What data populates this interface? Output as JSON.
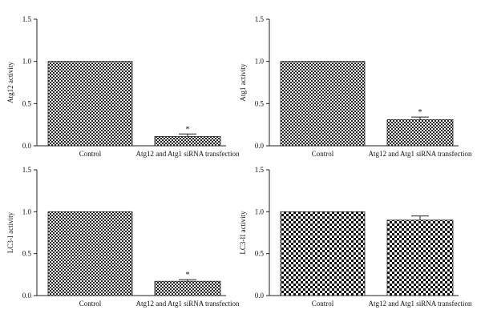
{
  "chart_data": [
    {
      "type": "bar",
      "categories": [
        "Control",
        "Atg12 and Atg1 siRNA transfection"
      ],
      "values": [
        1.0,
        0.11
      ],
      "errors": [
        0,
        0.03
      ],
      "significance": [
        "",
        "*"
      ],
      "title": "",
      "xlabel": "",
      "ylabel": "Atg12 activity",
      "ylim": [
        0,
        1.5
      ],
      "yticks": [
        "0.0",
        "0.5",
        "1.0",
        "1.5"
      ],
      "grid": false,
      "bar_pattern": "checkerboard"
    },
    {
      "type": "bar",
      "categories": [
        "Control",
        "Atg12 and Atg1 siRNA transfection"
      ],
      "values": [
        1.0,
        0.31
      ],
      "errors": [
        0,
        0.03
      ],
      "significance": [
        "",
        "*"
      ],
      "title": "",
      "xlabel": "",
      "ylabel": "Atg1 activity",
      "ylim": [
        0,
        1.5
      ],
      "yticks": [
        "0.0",
        "0.5",
        "1.0",
        "1.5"
      ],
      "grid": false,
      "bar_pattern": "checkerboard"
    },
    {
      "type": "bar",
      "categories": [
        "Control",
        "Atg12 and Atg1 siRNA transfection"
      ],
      "values": [
        1.0,
        0.17
      ],
      "errors": [
        0,
        0.02
      ],
      "significance": [
        "",
        "*"
      ],
      "title": "",
      "xlabel": "",
      "ylabel": "LC3-I activity",
      "ylim": [
        0,
        1.5
      ],
      "yticks": [
        "0.0",
        "0.5",
        "1.0",
        "1.5"
      ],
      "grid": false,
      "bar_pattern": "checkerboard"
    },
    {
      "type": "bar",
      "categories": [
        "Control",
        "Atg12 and Atg1 siRNA transfection"
      ],
      "values": [
        1.0,
        0.9
      ],
      "errors": [
        0,
        0.05
      ],
      "significance": [
        "",
        ""
      ],
      "title": "",
      "xlabel": "",
      "ylabel": "LC3-II activity",
      "ylim": [
        0,
        1.5
      ],
      "yticks": [
        "0.0",
        "0.5",
        "1.0",
        "1.5"
      ],
      "grid": false,
      "bar_pattern": "checkerboard"
    }
  ]
}
